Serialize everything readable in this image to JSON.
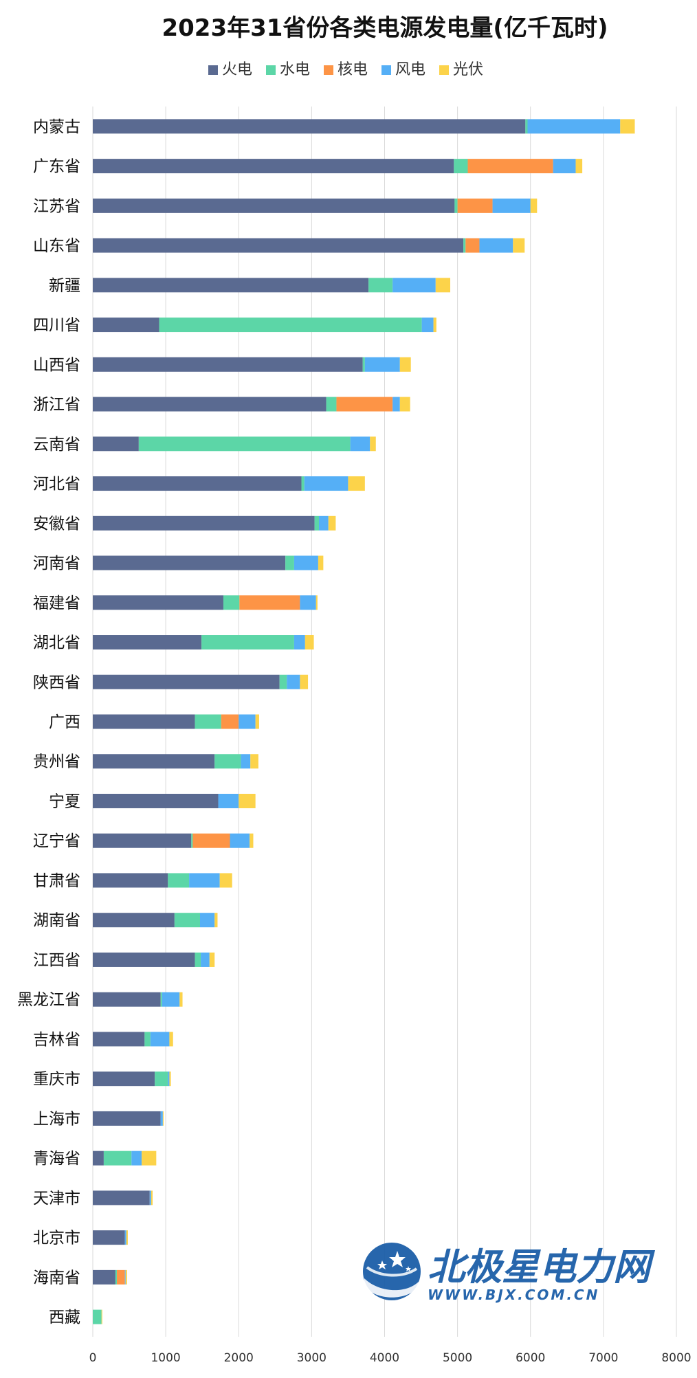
{
  "chart_data": {
    "type": "bar",
    "orientation": "horizontal",
    "stacked": true,
    "title": "2023年31省份各类电源发电量(亿千瓦时)",
    "xlim": [
      0,
      8000
    ],
    "xticks": [
      0,
      1000,
      2000,
      3000,
      4000,
      5000,
      6000,
      7000,
      8000
    ],
    "grid": true,
    "legend_position": "top",
    "categories": [
      "内蒙古",
      "广东省",
      "江苏省",
      "山东省",
      "新疆",
      "四川省",
      "山西省",
      "浙江省",
      "云南省",
      "河北省",
      "安徽省",
      "河南省",
      "福建省",
      "湖北省",
      "陕西省",
      "广西",
      "贵州省",
      "宁夏",
      "辽宁省",
      "甘肃省",
      "湖南省",
      "江西省",
      "黑龙江省",
      "吉林省",
      "重庆市",
      "上海市",
      "青海省",
      "天津市",
      "北京市",
      "海南省",
      "西藏"
    ],
    "series": [
      {
        "name": "火电",
        "color": "#5a6a91",
        "values": [
          5930,
          4950,
          4960,
          5080,
          3780,
          910,
          3700,
          3200,
          630,
          2860,
          3040,
          2640,
          1790,
          1490,
          2560,
          1400,
          1670,
          1720,
          1350,
          1030,
          1120,
          1400,
          930,
          710,
          850,
          930,
          150,
          780,
          440,
          310,
          0
        ]
      },
      {
        "name": "水电",
        "color": "#5cd6a7",
        "values": [
          30,
          190,
          40,
          30,
          330,
          3600,
          30,
          140,
          2900,
          40,
          60,
          120,
          220,
          1270,
          100,
          360,
          360,
          0,
          20,
          290,
          350,
          80,
          20,
          80,
          180,
          0,
          380,
          0,
          0,
          20,
          120
        ]
      },
      {
        "name": "核电",
        "color": "#fd9446",
        "values": [
          0,
          1170,
          480,
          190,
          0,
          0,
          0,
          770,
          0,
          0,
          0,
          0,
          830,
          0,
          0,
          240,
          0,
          0,
          510,
          0,
          0,
          0,
          0,
          0,
          0,
          0,
          0,
          0,
          0,
          110,
          0
        ]
      },
      {
        "name": "风电",
        "color": "#55aff6",
        "values": [
          1270,
          310,
          520,
          460,
          590,
          160,
          480,
          100,
          270,
          600,
          130,
          330,
          220,
          150,
          180,
          230,
          130,
          280,
          270,
          420,
          200,
          120,
          240,
          260,
          20,
          30,
          140,
          20,
          20,
          10,
          0
        ]
      },
      {
        "name": "光伏",
        "color": "#fcd34a",
        "values": [
          200,
          90,
          90,
          160,
          200,
          40,
          150,
          140,
          80,
          230,
          100,
          70,
          20,
          120,
          110,
          50,
          110,
          230,
          50,
          170,
          40,
          70,
          40,
          50,
          20,
          10,
          200,
          20,
          20,
          20,
          10
        ]
      }
    ]
  },
  "watermark": {
    "logo_icon": "star-globe-icon",
    "brand": "北极星电力网",
    "url": "WWW.BJX.COM.CN",
    "color": "#1c5ea8"
  }
}
